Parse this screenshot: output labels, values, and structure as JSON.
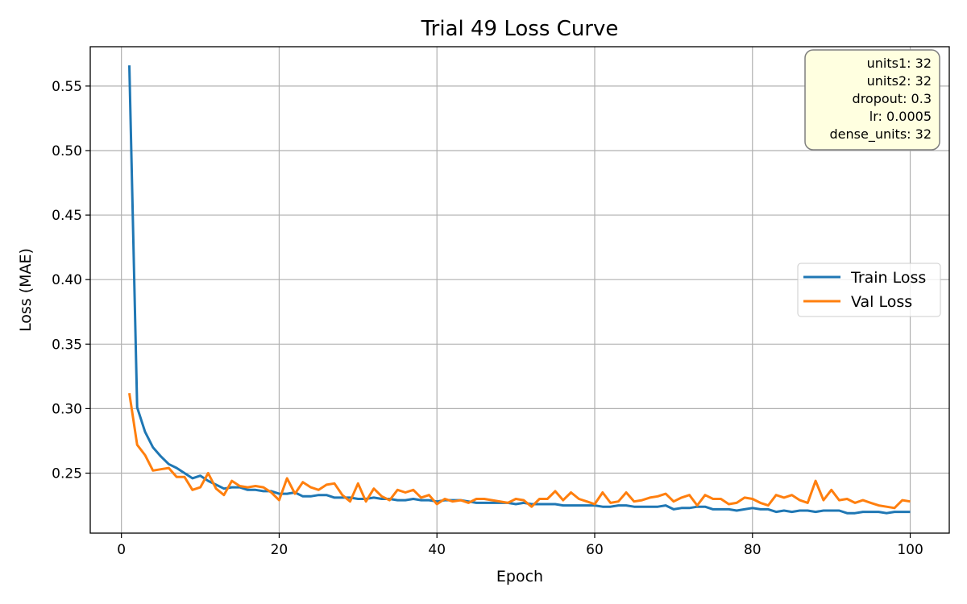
{
  "chart_data": {
    "type": "line",
    "title": "Trial 49 Loss Curve",
    "xlabel": "Epoch",
    "ylabel": "Loss (MAE)",
    "xlim": [
      -3.95,
      104.95
    ],
    "ylim": [
      0.2035,
      0.5805
    ],
    "xticks": [
      0,
      20,
      40,
      60,
      80,
      100
    ],
    "yticks": [
      0.25,
      0.3,
      0.35,
      0.4,
      0.45,
      0.5,
      0.55
    ],
    "ytick_labels": [
      "0.25",
      "0.30",
      "0.35",
      "0.40",
      "0.45",
      "0.50",
      "0.55"
    ],
    "grid": true,
    "legend_position": "center-right",
    "x": [
      1,
      2,
      3,
      4,
      5,
      6,
      7,
      8,
      9,
      10,
      11,
      12,
      13,
      14,
      15,
      16,
      17,
      18,
      19,
      20,
      21,
      22,
      23,
      24,
      25,
      26,
      27,
      28,
      29,
      30,
      31,
      32,
      33,
      34,
      35,
      36,
      37,
      38,
      39,
      40,
      41,
      42,
      43,
      44,
      45,
      46,
      47,
      48,
      49,
      50,
      51,
      52,
      53,
      54,
      55,
      56,
      57,
      58,
      59,
      60,
      61,
      62,
      63,
      64,
      65,
      66,
      67,
      68,
      69,
      70,
      71,
      72,
      73,
      74,
      75,
      76,
      77,
      78,
      79,
      80,
      81,
      82,
      83,
      84,
      85,
      86,
      87,
      88,
      89,
      90,
      91,
      92,
      93,
      94,
      95,
      96,
      97,
      98,
      99,
      100
    ],
    "series": [
      {
        "name": "Train Loss",
        "color": "#1f77b4",
        "values": [
          0.566,
          0.301,
          0.282,
          0.27,
          0.263,
          0.257,
          0.254,
          0.25,
          0.246,
          0.248,
          0.244,
          0.241,
          0.238,
          0.239,
          0.239,
          0.237,
          0.237,
          0.236,
          0.236,
          0.234,
          0.234,
          0.235,
          0.232,
          0.232,
          0.233,
          0.233,
          0.231,
          0.231,
          0.231,
          0.23,
          0.23,
          0.231,
          0.23,
          0.23,
          0.229,
          0.229,
          0.23,
          0.229,
          0.229,
          0.228,
          0.229,
          0.229,
          0.229,
          0.228,
          0.227,
          0.227,
          0.227,
          0.227,
          0.227,
          0.226,
          0.227,
          0.226,
          0.226,
          0.226,
          0.226,
          0.225,
          0.225,
          0.225,
          0.225,
          0.225,
          0.224,
          0.224,
          0.225,
          0.225,
          0.224,
          0.224,
          0.224,
          0.224,
          0.225,
          0.222,
          0.223,
          0.223,
          0.224,
          0.224,
          0.222,
          0.222,
          0.222,
          0.221,
          0.222,
          0.223,
          0.222,
          0.222,
          0.22,
          0.221,
          0.22,
          0.221,
          0.221,
          0.22,
          0.221,
          0.221,
          0.221,
          0.219,
          0.219,
          0.22,
          0.22,
          0.22,
          0.219,
          0.22,
          0.22,
          0.22
        ]
      },
      {
        "name": "Val Loss",
        "color": "#ff7f0e",
        "values": [
          0.312,
          0.272,
          0.264,
          0.252,
          0.253,
          0.254,
          0.247,
          0.247,
          0.237,
          0.239,
          0.25,
          0.238,
          0.233,
          0.244,
          0.24,
          0.239,
          0.24,
          0.239,
          0.235,
          0.229,
          0.246,
          0.234,
          0.243,
          0.239,
          0.237,
          0.241,
          0.242,
          0.233,
          0.228,
          0.242,
          0.228,
          0.238,
          0.232,
          0.229,
          0.237,
          0.235,
          0.237,
          0.231,
          0.233,
          0.226,
          0.23,
          0.228,
          0.229,
          0.227,
          0.23,
          0.23,
          0.229,
          0.228,
          0.227,
          0.23,
          0.229,
          0.224,
          0.23,
          0.23,
          0.236,
          0.229,
          0.235,
          0.23,
          0.228,
          0.226,
          0.235,
          0.227,
          0.228,
          0.235,
          0.228,
          0.229,
          0.231,
          0.232,
          0.234,
          0.228,
          0.231,
          0.233,
          0.225,
          0.233,
          0.23,
          0.23,
          0.226,
          0.227,
          0.231,
          0.23,
          0.227,
          0.225,
          0.233,
          0.231,
          0.233,
          0.229,
          0.227,
          0.244,
          0.229,
          0.237,
          0.229,
          0.23,
          0.227,
          0.229,
          0.227,
          0.225,
          0.224,
          0.223,
          0.229,
          0.228
        ]
      }
    ],
    "hyperparameters": [
      "units1: 32",
      "units2: 32",
      "dropout: 0.3",
      "lr: 0.0005",
      "dense_units: 32"
    ],
    "hyperparameter_box_fill": "#ffffe0"
  }
}
